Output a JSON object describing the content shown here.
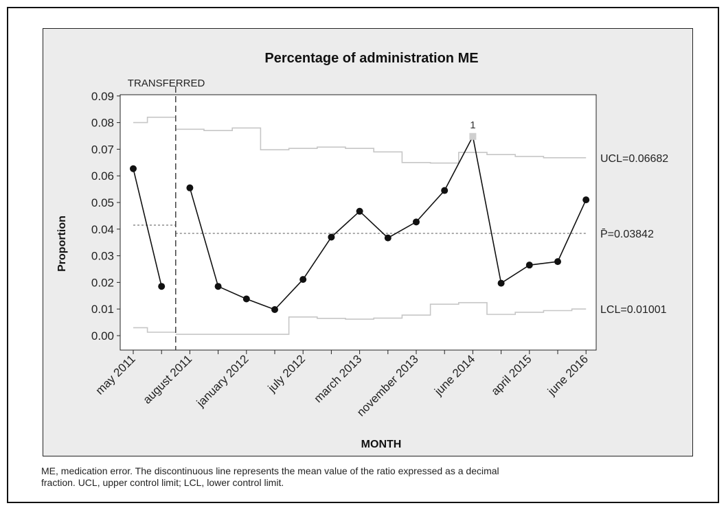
{
  "caption": {
    "line1": "ME, medication error. The discontinuous line represents the mean value of the ratio expressed as a decimal",
    "line2": "fraction. UCL, upper control limit; LCL, lower control limit."
  },
  "chart_data": {
    "type": "line",
    "title": "Percentage of administration ME",
    "xlabel": "MONTH",
    "ylabel": "Proportion",
    "ylim": [
      0,
      0.09
    ],
    "yticks": [
      "0.00",
      "0.01",
      "0.02",
      "0.03",
      "0.04",
      "0.05",
      "0.06",
      "0.07",
      "0.08",
      "0.09"
    ],
    "xtick_labels": [
      "may 2011",
      "august 2011",
      "january 2012",
      "july 2012",
      "march 2013",
      "november 2013",
      "june 2014",
      "april 2015",
      "june 2016"
    ],
    "phase_annotation": "TRANSFERRED",
    "x_count": 17,
    "transfer_after_index": 1,
    "values": [
      0.0627,
      0.0185,
      0.0555,
      0.0185,
      0.0138,
      0.0098,
      0.0211,
      0.037,
      0.0467,
      0.0367,
      0.0427,
      0.0545,
      0.0748,
      0.0197,
      0.0265,
      0.0278,
      0.051
    ],
    "ucl": [
      0.08,
      0.082,
      0.0775,
      0.077,
      0.078,
      0.0698,
      0.0703,
      0.0708,
      0.0703,
      0.069,
      0.065,
      0.0648,
      0.0688,
      0.068,
      0.0673,
      0.0668,
      0.0668
    ],
    "lcl": [
      0.003,
      0.0013,
      0.0005,
      0.0005,
      0.0005,
      0.0005,
      0.007,
      0.0065,
      0.0062,
      0.0066,
      0.0077,
      0.0118,
      0.0124,
      0.008,
      0.0088,
      0.0094,
      0.01
    ],
    "center_before": 0.0415,
    "center_after": 0.0384,
    "out_of_control_index": 12,
    "out_of_control_label": "1",
    "ucl_label": "UCL=0.06682",
    "center_label": "P̄=0.03842",
    "lcl_label": "LCL=0.01001"
  }
}
